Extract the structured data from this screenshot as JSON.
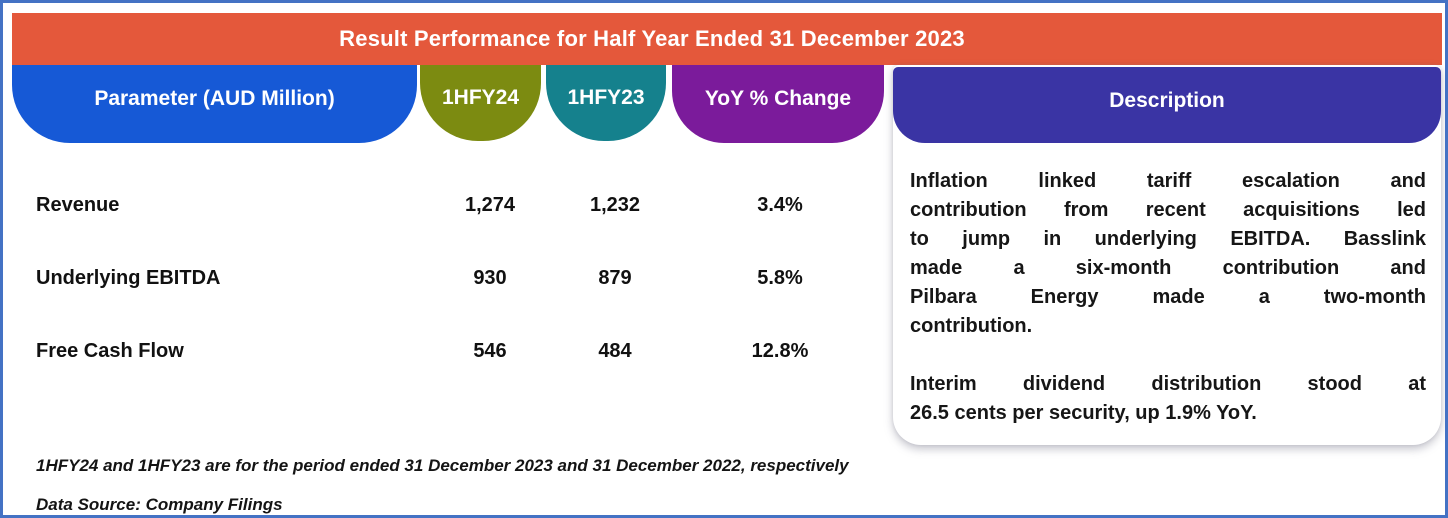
{
  "chart_data": {
    "type": "table",
    "title": "Result Performance for Half Year Ended 31 December 2023",
    "columns": [
      "Parameter (AUD Million)",
      "1HFY24",
      "1HFY23",
      "YoY % Change",
      "Description"
    ],
    "rows": [
      {
        "parameter": "Revenue",
        "hfy24": 1274,
        "hfy23": 1232,
        "yoy_pct_change": 3.4
      },
      {
        "parameter": "Underlying EBITDA",
        "hfy24": 930,
        "hfy23": 879,
        "yoy_pct_change": 5.8
      },
      {
        "parameter": "Free Cash Flow",
        "hfy24": 546,
        "hfy23": 484,
        "yoy_pct_change": 12.8
      }
    ],
    "units": "AUD Million",
    "notes": [
      "1HFY24 and 1HFY23 are for the period ended 31 December 2023 and 31 December 2022, respectively",
      "Data Source: Company Filings"
    ]
  },
  "banner": {
    "title": "Result Performance for Half Year Ended 31 December 2023"
  },
  "headers": {
    "parameter": "Parameter (AUD Million)",
    "hfy24": "1HFY24",
    "hfy23": "1HFY23",
    "yoy": "YoY % Change",
    "description": "Description"
  },
  "table": {
    "rows": [
      {
        "parameter": "Revenue",
        "hfy24": "1,274",
        "hfy23": "1,232",
        "yoy": "3.4%"
      },
      {
        "parameter": "Underlying EBITDA",
        "hfy24": "930",
        "hfy23": "879",
        "yoy": "5.8%"
      },
      {
        "parameter": "Free Cash Flow",
        "hfy24": "546",
        "hfy23": "484",
        "yoy": "12.8%"
      }
    ]
  },
  "description": {
    "para1": [
      "Inflation linked tariff escalation and",
      "contribution from recent acquisitions led",
      "to jump in underlying EBITDA. Basslink",
      "made a six-month contribution and",
      "Pilbara Energy made a two-month",
      "contribution."
    ],
    "para2": [
      "Interim dividend distribution stood at",
      "26.5 cents per security, up 1.9% YoY."
    ]
  },
  "footnotes": {
    "note1": "1HFY24 and 1HFY23 are for the period ended 31 December 2023 and 31 December 2022, respectively",
    "note2": "Data Source: Company Filings"
  },
  "colors": {
    "banner_orange": "#E4583B",
    "parameter_blue": "#1659D6",
    "hfy24_olive": "#7C8B11",
    "hfy23_teal": "#15818D",
    "yoy_purple": "#7B1B9B",
    "description_indigo": "#3A34A4",
    "frame_blue": "#4472C4",
    "text_black": "#111111"
  }
}
